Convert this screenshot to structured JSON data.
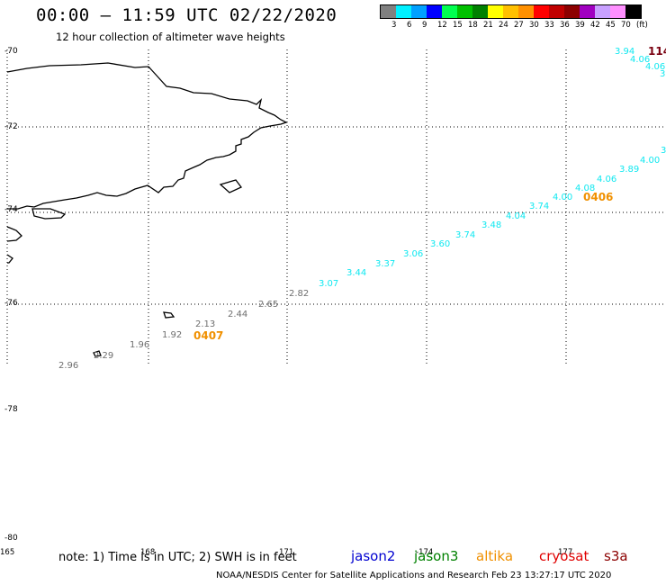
{
  "header": {
    "title": "00:00 — 11:59 UTC 02/22/2020",
    "subtitle": "12 hour collection of altimeter wave heights"
  },
  "legend": {
    "colors": [
      "#808080",
      "#00f0ff",
      "#00a0ff",
      "#0000ff",
      "#00ff50",
      "#00c000",
      "#008000",
      "#ffff00",
      "#ffc000",
      "#ff9000",
      "#ff0000",
      "#c00000",
      "#8c0000",
      "#a000c0",
      "#c8a0ff",
      "#ff90ff",
      "#000000"
    ],
    "labels": [
      "3",
      "6",
      "9",
      "12",
      "15",
      "18",
      "21",
      "24",
      "27",
      "30",
      "33",
      "36",
      "39",
      "42",
      "45",
      "70",
      "(ft)"
    ]
  },
  "lat_labels": [
    {
      "text": "-70",
      "lat": -70
    },
    {
      "text": "-72",
      "lat": -72
    },
    {
      "text": "-74",
      "lat": -74
    },
    {
      "text": "-76",
      "lat": -76
    },
    {
      "text": "-78",
      "lat": -78
    },
    {
      "text": "-80",
      "lat": -80
    }
  ],
  "lon_labels": [
    "165",
    "168",
    "171",
    "-174",
    "177"
  ],
  "wave_readings": [
    {
      "value": "114",
      "color": "darkred"
    },
    {
      "value": "3.94",
      "color": "cyan"
    },
    {
      "value": "4.06",
      "color": "cyan"
    },
    {
      "value": "4.06",
      "color": "cyan"
    },
    {
      "value": "3",
      "color": "cyan"
    },
    {
      "value": "3",
      "color": "cyan"
    },
    {
      "value": "4.00",
      "color": "cyan"
    },
    {
      "value": "3.89",
      "color": "cyan"
    },
    {
      "value": "4.06",
      "color": "cyan"
    },
    {
      "value": "4.08",
      "color": "cyan"
    },
    {
      "value": "4.00",
      "color": "cyan"
    },
    {
      "value": "0406",
      "color": "orange"
    },
    {
      "value": "3.74",
      "color": "cyan"
    },
    {
      "value": "4.04",
      "color": "cyan"
    },
    {
      "value": "3.48",
      "color": "cyan"
    },
    {
      "value": "3.74",
      "color": "cyan"
    },
    {
      "value": "3.60",
      "color": "cyan"
    },
    {
      "value": "3.06",
      "color": "cyan"
    },
    {
      "value": "3.37",
      "color": "cyan"
    },
    {
      "value": "3.44",
      "color": "cyan"
    },
    {
      "value": "3.07",
      "color": "cyan"
    },
    {
      "value": "2.82",
      "color": "gray"
    },
    {
      "value": "2.65",
      "color": "gray"
    },
    {
      "value": "2.44",
      "color": "gray"
    },
    {
      "value": "2.13",
      "color": "gray"
    },
    {
      "value": "1.92",
      "color": "gray"
    },
    {
      "value": "0407",
      "color": "orange"
    },
    {
      "value": "1.96",
      "color": "gray"
    },
    {
      "value": "2.29",
      "color": "gray"
    },
    {
      "value": "2.96",
      "color": "gray"
    }
  ],
  "footer": {
    "note": "note:  1) Time is in UTC;  2) SWH is in feet",
    "satellites": [
      {
        "name": "jason2",
        "color": "#0000d0"
      },
      {
        "name": "jason3",
        "color": "#008000"
      },
      {
        "name": "altika",
        "color": "#f09000"
      },
      {
        "name": "cryosat",
        "color": "#e00000"
      },
      {
        "name": "s3a",
        "color": "#8c0000"
      }
    ],
    "credit": "NOAA/NESDIS Center for Satellite Applications and Research     Feb 23 13:27:17 UTC 2020"
  }
}
